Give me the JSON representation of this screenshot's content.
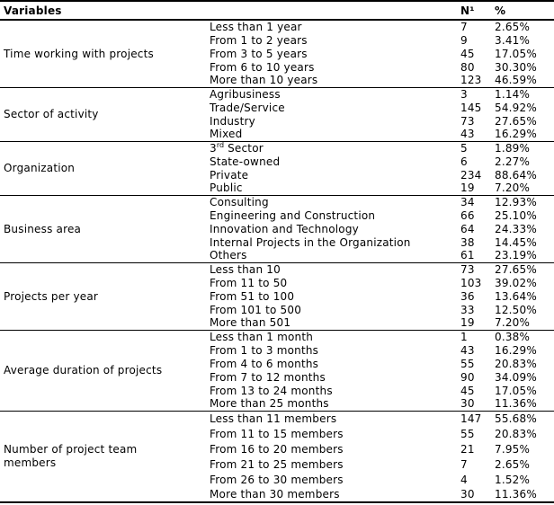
{
  "table": {
    "header": {
      "variables": "Variables",
      "n": "N¹",
      "pct": "%"
    },
    "groups": [
      {
        "variable": "Time working with projects",
        "rows": [
          {
            "label": "Less than 1 year",
            "n": "7",
            "pct": "2.65%"
          },
          {
            "label": "From 1 to 2 years",
            "n": "9",
            "pct": "3.41%"
          },
          {
            "label": "From 3 to 5 years",
            "n": "45",
            "pct": "17.05%"
          },
          {
            "label": "From 6 to 10 years",
            "n": "80",
            "pct": "30.30%"
          },
          {
            "label": "More than 10 years",
            "n": "123",
            "pct": "46.59%"
          }
        ]
      },
      {
        "variable": "Sector of activity",
        "rows": [
          {
            "label": "Agribusiness",
            "n": "3",
            "pct": "1.14%"
          },
          {
            "label": "Trade/Service",
            "n": "145",
            "pct": "54.92%"
          },
          {
            "label": "Industry",
            "n": "73",
            "pct": "27.65%"
          },
          {
            "label": "Mixed",
            "n": "43",
            "pct": "16.29%"
          }
        ]
      },
      {
        "variable": "Organization",
        "rows": [
          {
            "label": "3rd Sector",
            "label_parts": {
              "base": "3",
              "sup": "rd",
              "rest": " Sector"
            },
            "n": "5",
            "pct": "1.89%"
          },
          {
            "label": "State-owned",
            "n": "6",
            "pct": "2.27%"
          },
          {
            "label": "Private",
            "n": "234",
            "pct": "88.64%"
          },
          {
            "label": "Public",
            "n": "19",
            "pct": "7.20%"
          }
        ]
      },
      {
        "variable": "Business area",
        "rows": [
          {
            "label": "Consulting",
            "n": "34",
            "pct": "12.93%"
          },
          {
            "label": "Engineering and Construction",
            "n": "66",
            "pct": "25.10%"
          },
          {
            "label": "Innovation and Technology",
            "n": "64",
            "pct": "24.33%"
          },
          {
            "label": "Internal Projects in the Organization",
            "n": "38",
            "pct": "14.45%"
          },
          {
            "label": "Others",
            "n": "61",
            "pct": "23.19%"
          }
        ]
      },
      {
        "variable": "Projects per year",
        "rows": [
          {
            "label": "Less than 10",
            "n": "73",
            "pct": "27.65%"
          },
          {
            "label": "From 11 to 50",
            "n": "103",
            "pct": "39.02%"
          },
          {
            "label": "From 51 to 100",
            "n": "36",
            "pct": "13.64%"
          },
          {
            "label": "From 101 to 500",
            "n": "33",
            "pct": "12.50%"
          },
          {
            "label": "More than 501",
            "n": "19",
            "pct": "7.20%"
          }
        ]
      },
      {
        "variable": "Average duration of projects",
        "rows": [
          {
            "label": "Less than 1 month",
            "n": "1",
            "pct": "0.38%"
          },
          {
            "label": "From 1 to 3 months",
            "n": "43",
            "pct": "16.29%"
          },
          {
            "label": "From 4 to 6 months",
            "n": "55",
            "pct": "20.83%"
          },
          {
            "label": "From 7 to 12 months",
            "n": "90",
            "pct": "34.09%"
          },
          {
            "label": "From 13 to 24 months",
            "n": "45",
            "pct": "17.05%"
          },
          {
            "label": "More than 25 months",
            "n": "30",
            "pct": "11.36%"
          }
        ]
      },
      {
        "variable": "Number of project team members",
        "rows": [
          {
            "label": "Less than 11 members",
            "n": "147",
            "pct": "55.68%"
          },
          {
            "label": "From 11 to 15 members",
            "n": "55",
            "pct": "20.83%"
          },
          {
            "label": "From 16 to 20 members",
            "n": "21",
            "pct": "7.95%"
          },
          {
            "label": "From 21 to 25 members",
            "n": "7",
            "pct": "2.65%"
          },
          {
            "label": "From 26 to 30 members",
            "n": "4",
            "pct": "1.52%"
          },
          {
            "label": "More than 30 members",
            "n": "30",
            "pct": "11.36%"
          }
        ]
      }
    ]
  }
}
